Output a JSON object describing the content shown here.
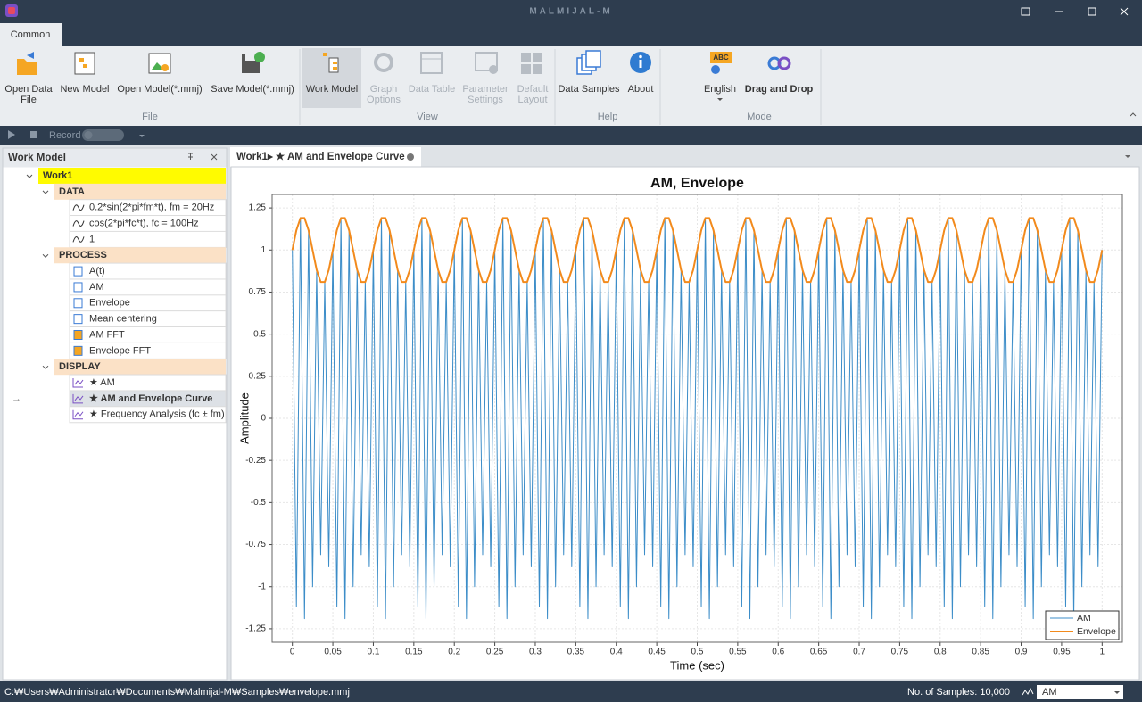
{
  "app": {
    "title": "MALMIJAL-M",
    "tab": "Common"
  },
  "ribbon": {
    "buttons": [
      {
        "label": [
          "Open Data",
          "File"
        ],
        "disabled": false
      },
      {
        "label": [
          "New Model"
        ],
        "disabled": false
      },
      {
        "label": [
          "Open Model(*.mmj)"
        ],
        "disabled": false
      },
      {
        "label": [
          "Save Model(*.mmj)"
        ],
        "disabled": false
      },
      {
        "label": [
          "Work Model"
        ],
        "disabled": false
      },
      {
        "label": [
          "Graph",
          "Options"
        ],
        "disabled": true
      },
      {
        "label": [
          "Data Table"
        ],
        "disabled": true
      },
      {
        "label": [
          "Parameter",
          "Settings"
        ],
        "disabled": true
      },
      {
        "label": [
          "Default",
          "Layout"
        ],
        "disabled": true
      },
      {
        "label": [
          "Data Samples"
        ],
        "disabled": false
      },
      {
        "label": [
          "About"
        ],
        "disabled": false
      },
      {
        "label": [
          "English"
        ],
        "disabled": false
      },
      {
        "label": [
          "Drag and Drop"
        ],
        "disabled": false
      }
    ],
    "groups": [
      "File",
      "View",
      "Help",
      "Mode"
    ]
  },
  "toolbar": {
    "record": "Record"
  },
  "work_model": {
    "title": "Work Model",
    "root": "Work1",
    "sections": [
      {
        "name": "DATA",
        "items": [
          "0.2*sin(2*pi*fm*t), fm = 20Hz",
          "cos(2*pi*fc*t), fc = 100Hz",
          "1"
        ]
      },
      {
        "name": "PROCESS",
        "items": [
          "A(t)",
          "AM",
          "Envelope",
          "Mean centering",
          "AM FFT",
          "Envelope FFT"
        ]
      },
      {
        "name": "DISPLAY",
        "items": [
          "★ AM",
          "★ AM and Envelope Curve",
          "★ Frequency Analysis (fc ± fm)"
        ]
      }
    ]
  },
  "document": {
    "tab": "Work1▸ ★ AM and Envelope Curve"
  },
  "chart_data": {
    "type": "line",
    "title": "AM, Envelope",
    "x_label": "Time (sec)",
    "y_label": "Amplitude",
    "x": [
      0,
      0.005,
      0.01,
      0.015,
      0.02,
      0.025,
      0.03,
      0.035,
      0.04,
      0.045,
      0.05,
      0.055,
      0.06,
      0.065,
      0.07,
      0.075,
      0.08,
      0.085,
      0.09,
      0.095,
      0.1,
      0.105,
      0.11,
      0.115,
      0.12,
      0.125,
      0.13,
      0.135,
      0.14,
      0.145,
      0.15,
      0.155,
      0.16,
      0.165,
      0.17,
      0.175,
      0.18,
      0.185,
      0.19,
      0.195,
      0.2,
      0.205,
      0.21,
      0.215,
      0.22,
      0.225,
      0.23,
      0.235,
      0.24,
      0.245,
      0.25,
      0.255,
      0.26,
      0.265,
      0.27,
      0.275,
      0.28,
      0.285,
      0.29,
      0.295,
      0.3,
      0.305,
      0.31,
      0.315,
      0.32,
      0.325,
      0.33,
      0.335,
      0.34,
      0.345,
      0.35,
      0.355,
      0.36,
      0.365,
      0.37,
      0.375,
      0.38,
      0.385,
      0.39,
      0.395,
      0.4,
      0.405,
      0.41,
      0.415,
      0.42,
      0.425,
      0.43,
      0.435,
      0.44,
      0.445,
      0.45,
      0.455,
      0.46,
      0.465,
      0.47,
      0.475,
      0.48,
      0.485,
      0.49,
      0.495,
      0.5,
      0.505,
      0.51,
      0.515,
      0.52,
      0.525,
      0.53,
      0.535,
      0.54,
      0.545,
      0.55,
      0.555,
      0.56,
      0.565,
      0.57,
      0.575,
      0.58,
      0.585,
      0.59,
      0.595,
      0.6,
      0.605,
      0.61,
      0.615,
      0.62,
      0.625,
      0.63,
      0.635,
      0.64,
      0.645,
      0.65,
      0.655,
      0.66,
      0.665,
      0.67,
      0.675,
      0.68,
      0.685,
      0.69,
      0.695,
      0.7,
      0.705,
      0.71,
      0.715,
      0.72,
      0.725,
      0.73,
      0.735,
      0.74,
      0.745,
      0.75,
      0.755,
      0.76,
      0.765,
      0.77,
      0.775,
      0.78,
      0.785,
      0.79,
      0.795,
      0.8,
      0.805,
      0.81,
      0.815,
      0.82,
      0.825,
      0.83,
      0.835,
      0.84,
      0.845,
      0.85,
      0.855,
      0.86,
      0.865,
      0.87,
      0.875,
      0.88,
      0.885,
      0.89,
      0.895,
      0.9,
      0.905,
      0.91,
      0.915,
      0.92,
      0.925,
      0.93,
      0.935,
      0.94,
      0.945,
      0.95,
      0.955,
      0.96,
      0.965,
      0.97,
      0.975,
      0.98,
      0.985,
      0.99,
      0.995,
      1
    ],
    "series": [
      {
        "name": "AM",
        "color": "#3c8dc8",
        "values": [
          1,
          -1.118,
          1.19,
          -1.19,
          1.118,
          -1,
          0.882,
          -0.81,
          0.81,
          -0.882,
          1,
          -1.118,
          1.19,
          -1.19,
          1.118,
          -1,
          0.882,
          -0.81,
          0.81,
          -0.882,
          1,
          -1.118,
          1.19,
          -1.19,
          1.118,
          -1,
          0.882,
          -0.81,
          0.81,
          -0.882,
          1,
          -1.118,
          1.19,
          -1.19,
          1.118,
          -1,
          0.882,
          -0.81,
          0.81,
          -0.882,
          1,
          -1.118,
          1.19,
          -1.19,
          1.118,
          -1,
          0.882,
          -0.81,
          0.81,
          -0.882,
          1,
          -1.118,
          1.19,
          -1.19,
          1.118,
          -1,
          0.882,
          -0.81,
          0.81,
          -0.882,
          1,
          -1.118,
          1.19,
          -1.19,
          1.118,
          -1,
          0.882,
          -0.81,
          0.81,
          -0.882,
          1,
          -1.118,
          1.19,
          -1.19,
          1.118,
          -1,
          0.882,
          -0.81,
          0.81,
          -0.882,
          1,
          -1.118,
          1.19,
          -1.19,
          1.118,
          -1,
          0.882,
          -0.81,
          0.81,
          -0.882,
          1,
          -1.118,
          1.19,
          -1.19,
          1.118,
          -1,
          0.882,
          -0.81,
          0.81,
          -0.882,
          1,
          -1.118,
          1.19,
          -1.19,
          1.118,
          -1,
          0.882,
          -0.81,
          0.81,
          -0.882,
          1,
          -1.118,
          1.19,
          -1.19,
          1.118,
          -1,
          0.882,
          -0.81,
          0.81,
          -0.882,
          1,
          -1.118,
          1.19,
          -1.19,
          1.118,
          -1,
          0.882,
          -0.81,
          0.81,
          -0.882,
          1,
          -1.118,
          1.19,
          -1.19,
          1.118,
          -1,
          0.882,
          -0.81,
          0.81,
          -0.882,
          1,
          -1.118,
          1.19,
          -1.19,
          1.118,
          -1,
          0.882,
          -0.81,
          0.81,
          -0.882,
          1,
          -1.118,
          1.19,
          -1.19,
          1.118,
          -1,
          0.882,
          -0.81,
          0.81,
          -0.882,
          1,
          -1.118,
          1.19,
          -1.19,
          1.118,
          -1,
          0.882,
          -0.81,
          0.81,
          -0.882,
          1,
          -1.118,
          1.19,
          -1.19,
          1.118,
          -1,
          0.882,
          -0.81,
          0.81,
          -0.882,
          1,
          -1.118,
          1.19,
          -1.19,
          1.118,
          -1,
          0.882,
          -0.81,
          0.81,
          -0.882,
          1,
          -1.118,
          1.19,
          -1.19,
          1.118,
          -1,
          0.882,
          -0.81,
          0.81,
          -0.882,
          1
        ]
      },
      {
        "name": "Envelope",
        "color": "#f28a1c",
        "values": [
          1,
          1.118,
          1.19,
          1.19,
          1.118,
          1,
          0.882,
          0.81,
          0.81,
          0.882,
          1,
          1.118,
          1.19,
          1.19,
          1.118,
          1,
          0.882,
          0.81,
          0.81,
          0.882,
          1,
          1.118,
          1.19,
          1.19,
          1.118,
          1,
          0.882,
          0.81,
          0.81,
          0.882,
          1,
          1.118,
          1.19,
          1.19,
          1.118,
          1,
          0.882,
          0.81,
          0.81,
          0.882,
          1,
          1.118,
          1.19,
          1.19,
          1.118,
          1,
          0.882,
          0.81,
          0.81,
          0.882,
          1,
          1.118,
          1.19,
          1.19,
          1.118,
          1,
          0.882,
          0.81,
          0.81,
          0.882,
          1,
          1.118,
          1.19,
          1.19,
          1.118,
          1,
          0.882,
          0.81,
          0.81,
          0.882,
          1,
          1.118,
          1.19,
          1.19,
          1.118,
          1,
          0.882,
          0.81,
          0.81,
          0.882,
          1,
          1.118,
          1.19,
          1.19,
          1.118,
          1,
          0.882,
          0.81,
          0.81,
          0.882,
          1,
          1.118,
          1.19,
          1.19,
          1.118,
          1,
          0.882,
          0.81,
          0.81,
          0.882,
          1,
          1.118,
          1.19,
          1.19,
          1.118,
          1,
          0.882,
          0.81,
          0.81,
          0.882,
          1,
          1.118,
          1.19,
          1.19,
          1.118,
          1,
          0.882,
          0.81,
          0.81,
          0.882,
          1,
          1.118,
          1.19,
          1.19,
          1.118,
          1,
          0.882,
          0.81,
          0.81,
          0.882,
          1,
          1.118,
          1.19,
          1.19,
          1.118,
          1,
          0.882,
          0.81,
          0.81,
          0.882,
          1,
          1.118,
          1.19,
          1.19,
          1.118,
          1,
          0.882,
          0.81,
          0.81,
          0.882,
          1,
          1.118,
          1.19,
          1.19,
          1.118,
          1,
          0.882,
          0.81,
          0.81,
          0.882,
          1,
          1.118,
          1.19,
          1.19,
          1.118,
          1,
          0.882,
          0.81,
          0.81,
          0.882,
          1,
          1.118,
          1.19,
          1.19,
          1.118,
          1,
          0.882,
          0.81,
          0.81,
          0.882,
          1,
          1.118,
          1.19,
          1.19,
          1.118,
          1,
          0.882,
          0.81,
          0.81,
          0.882,
          1,
          1.118,
          1.19,
          1.19,
          1.118,
          1,
          0.882,
          0.81,
          0.81,
          0.882,
          1
        ]
      }
    ],
    "xlim": [
      -0.025,
      1.025
    ],
    "ylim": [
      -1.33,
      1.33
    ],
    "xticks": [
      0,
      0.05,
      0.1,
      0.15,
      0.2,
      0.25,
      0.3,
      0.35,
      0.4,
      0.45,
      0.5,
      0.55,
      0.6,
      0.65,
      0.7,
      0.75,
      0.8,
      0.85,
      0.9,
      0.95,
      1
    ],
    "yticks": [
      -1.25,
      -1,
      -0.75,
      -0.5,
      -0.25,
      0,
      0.25,
      0.5,
      0.75,
      1,
      1.25
    ],
    "grid": true,
    "legend": "lower-right"
  },
  "status": {
    "path": "C:₩Users₩Administrator₩Documents₩Malmijal-M₩Samples₩envelope.mmj",
    "samples": "No. of Samples: 10,000",
    "series_select": "AM"
  }
}
